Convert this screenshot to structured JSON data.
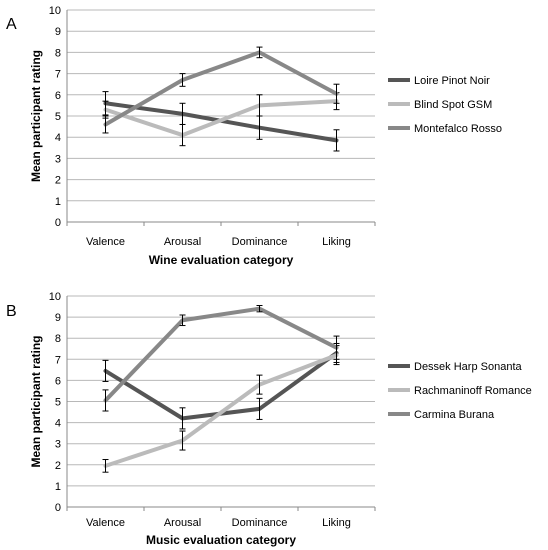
{
  "chart_data": [
    {
      "type": "line",
      "panel_label": "A",
      "categories": [
        "Valence",
        "Arousal",
        "Dominance",
        "Liking"
      ],
      "xlabel": "Wine evaluation category",
      "ylabel": "Mean participant rating",
      "ylim": [
        0,
        10
      ],
      "yticks": [
        "0",
        "1",
        "2",
        "3",
        "4",
        "5",
        "6",
        "7",
        "8",
        "9",
        "10"
      ],
      "grid": "horizontal",
      "legend_position": "right",
      "series": [
        {
          "name": "Loire Pinot Noir",
          "color": "#555555",
          "values": [
            5.6,
            5.1,
            4.45,
            3.85
          ],
          "errors": [
            0.55,
            0.5,
            0.55,
            0.5
          ]
        },
        {
          "name": "Blind Spot GSM",
          "color": "#bbbbbb",
          "values": [
            5.3,
            4.1,
            5.5,
            5.7
          ],
          "errors": [
            0.4,
            0.5,
            0.5,
            0.4
          ]
        },
        {
          "name": "Montefalco Rosso",
          "color": "#888888",
          "values": [
            4.6,
            6.7,
            8.0,
            6.05
          ],
          "errors": [
            0.4,
            0.3,
            0.25,
            0.45
          ]
        }
      ]
    },
    {
      "type": "line",
      "panel_label": "B",
      "categories": [
        "Valence",
        "Arousal",
        "Dominance",
        "Liking"
      ],
      "xlabel": "Music evaluation category",
      "ylabel": "Mean participant rating",
      "ylim": [
        0,
        10
      ],
      "yticks": [
        "0",
        "1",
        "2",
        "3",
        "4",
        "5",
        "6",
        "7",
        "8",
        "9",
        "10"
      ],
      "grid": "horizontal",
      "legend_position": "right",
      "series": [
        {
          "name": "Dessek Harp Sonanta",
          "color": "#555555",
          "values": [
            6.45,
            4.2,
            4.65,
            7.3
          ],
          "errors": [
            0.5,
            0.5,
            0.5,
            0.45
          ]
        },
        {
          "name": "Rachmaninoff Romance",
          "color": "#bbbbbb",
          "values": [
            1.95,
            3.15,
            5.8,
            7.2
          ],
          "errors": [
            0.3,
            0.45,
            0.45,
            0.45
          ]
        },
        {
          "name": "Carmina Burana",
          "color": "#888888",
          "values": [
            5.05,
            8.85,
            9.4,
            7.55
          ],
          "errors": [
            0.5,
            0.25,
            0.15,
            0.55
          ]
        }
      ]
    }
  ]
}
